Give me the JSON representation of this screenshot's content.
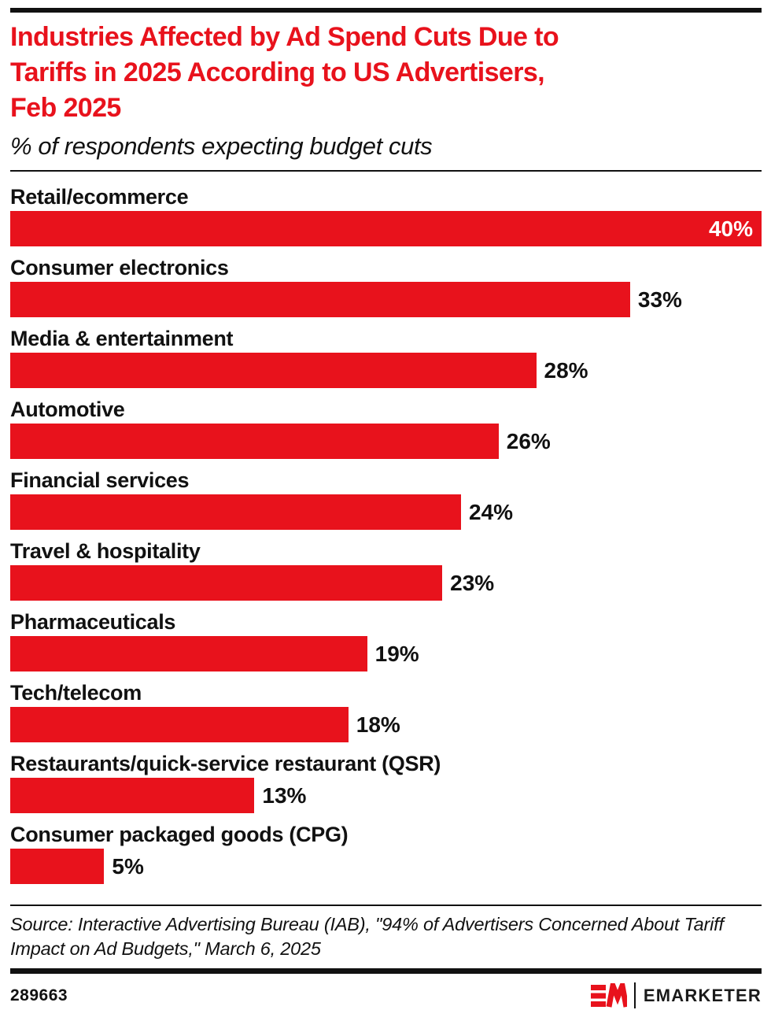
{
  "accent_color": "#e8121c",
  "text_color": "#111111",
  "header": {
    "title": "Industries Affected by Ad Spend Cuts Due to Tariffs in 2025 According to US Advertisers, Feb 2025",
    "title_lines": [
      "Industries Affected by Ad Spend Cuts Due to",
      "Tariffs in 2025 According to US Advertisers,",
      "Feb 2025"
    ],
    "subtitle": "% of respondents expecting budget cuts"
  },
  "chart_data": {
    "type": "bar",
    "orientation": "horizontal",
    "title": "Industries Affected by Ad Spend Cuts Due to Tariffs in 2025 According to US Advertisers, Feb 2025",
    "subtitle": "% of respondents expecting budget cuts",
    "categories": [
      "Retail/ecommerce",
      "Consumer electronics",
      "Media & entertainment",
      "Automotive",
      "Financial services",
      "Travel & hospitality",
      "Pharmaceuticals",
      "Tech/telecom",
      "Restaurants/quick-service restaurant (QSR)",
      "Consumer packaged goods (CPG)"
    ],
    "values": [
      40,
      33,
      28,
      26,
      24,
      23,
      19,
      18,
      13,
      5
    ],
    "value_suffix": "%",
    "xlim": [
      0,
      40
    ],
    "grid": false,
    "legend": false,
    "bar_color": "#e8121c",
    "value_label_position": "outside-right; inside-right when bar is full width"
  },
  "source": {
    "text": "Source: Interactive Advertising Bureau (IAB), \"94% of Advertisers Concerned About Tariff Impact on Ad Budgets,\" March 6, 2025",
    "lines": [
      "Source: Interactive Advertising Bureau (IAB), \"94% of Advertisers Concerned About Tariff",
      "Impact on Ad Budgets,\" March 6, 2025"
    ]
  },
  "footer": {
    "chart_id": "289663",
    "brand_name": "EMARKETER",
    "logo": "EM-mark"
  }
}
